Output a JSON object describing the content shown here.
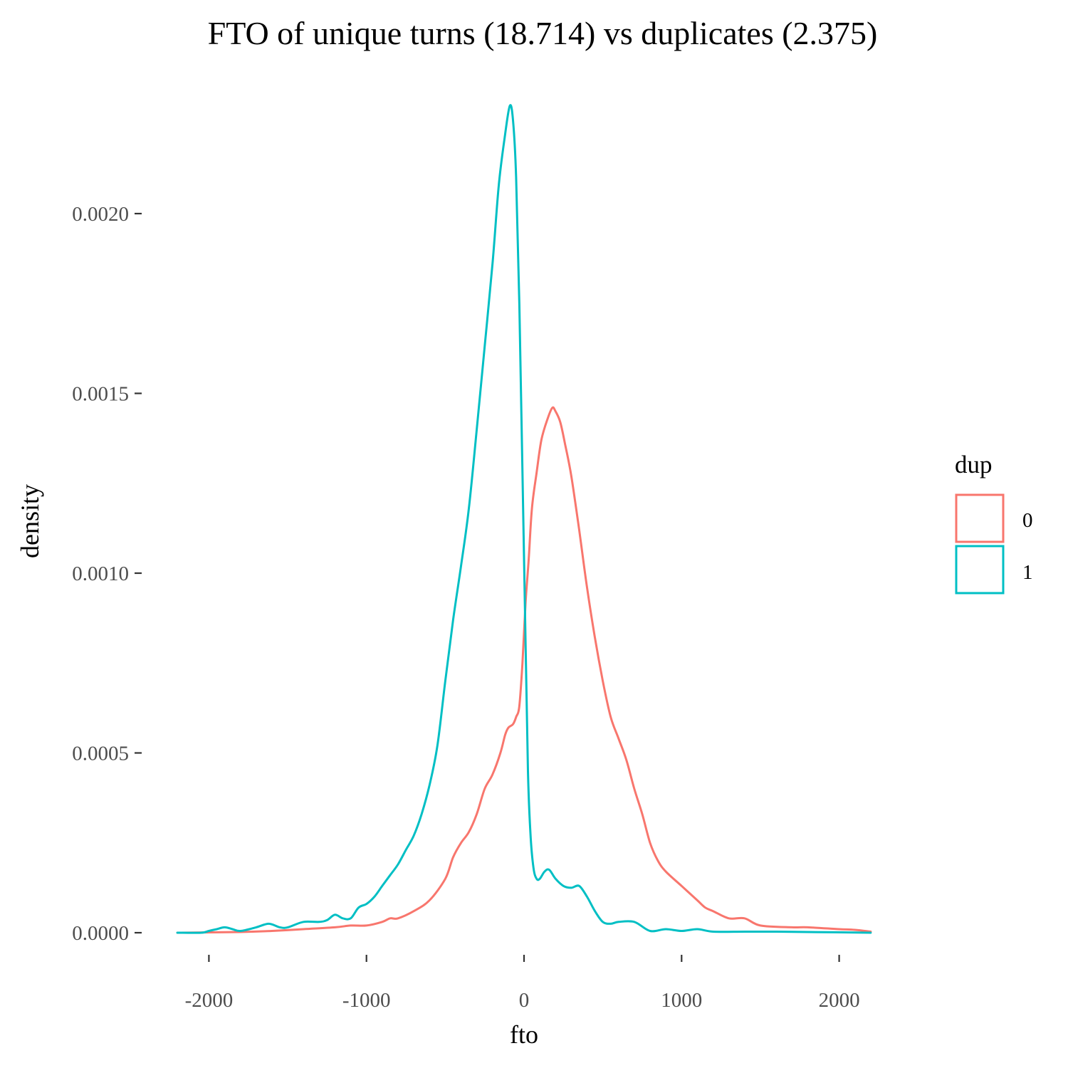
{
  "chart_data": {
    "type": "line",
    "title": "FTO of unique turns (18.714) vs duplicates (2.375)",
    "xlabel": "fto",
    "ylabel": "density",
    "xlim": [
      -2200,
      2200
    ],
    "ylim": [
      0,
      0.0023
    ],
    "x_ticks": [
      -2000,
      -1000,
      0,
      1000,
      2000
    ],
    "x_tick_labels": [
      "-2000",
      "-1000",
      "0",
      "1000",
      "2000"
    ],
    "y_ticks": [
      0,
      0.0005,
      0.001,
      0.0015,
      0.002
    ],
    "y_tick_labels": [
      "0.0000",
      "0.0005",
      "0.0010",
      "0.0015",
      "0.0020"
    ],
    "grid": false,
    "legend": {
      "title": "dup",
      "placement": "right",
      "entries": [
        {
          "label": "0",
          "color": "#F8766D"
        },
        {
          "label": "1",
          "color": "#00BFC4"
        }
      ]
    },
    "series": [
      {
        "name": "0",
        "color": "#F8766D",
        "points": [
          [
            -2200,
            0
          ],
          [
            -1800,
            2e-06
          ],
          [
            -1600,
            5e-06
          ],
          [
            -1400,
            1e-05
          ],
          [
            -1200,
            1.5e-05
          ],
          [
            -1100,
            2e-05
          ],
          [
            -1000,
            2e-05
          ],
          [
            -900,
            3e-05
          ],
          [
            -850,
            4e-05
          ],
          [
            -800,
            4e-05
          ],
          [
            -700,
            6e-05
          ],
          [
            -600,
            9e-05
          ],
          [
            -500,
            0.00015
          ],
          [
            -450,
            0.00021
          ],
          [
            -400,
            0.00025
          ],
          [
            -350,
            0.00028
          ],
          [
            -300,
            0.00033
          ],
          [
            -250,
            0.0004
          ],
          [
            -200,
            0.00044
          ],
          [
            -150,
            0.0005
          ],
          [
            -120,
            0.00055
          ],
          [
            -100,
            0.00057
          ],
          [
            -70,
            0.00058
          ],
          [
            -50,
            0.0006
          ],
          [
            -30,
            0.00063
          ],
          [
            -10,
            0.00075
          ],
          [
            10,
            0.00092
          ],
          [
            30,
            0.00104
          ],
          [
            50,
            0.00118
          ],
          [
            80,
            0.00128
          ],
          [
            110,
            0.00137
          ],
          [
            150,
            0.00143
          ],
          [
            180,
            0.00146
          ],
          [
            200,
            0.00145
          ],
          [
            230,
            0.00142
          ],
          [
            260,
            0.00136
          ],
          [
            300,
            0.00127
          ],
          [
            350,
            0.00112
          ],
          [
            400,
            0.00096
          ],
          [
            450,
            0.00082
          ],
          [
            500,
            0.0007
          ],
          [
            550,
            0.0006
          ],
          [
            600,
            0.00054
          ],
          [
            650,
            0.00048
          ],
          [
            700,
            0.0004
          ],
          [
            750,
            0.00033
          ],
          [
            800,
            0.00025
          ],
          [
            850,
            0.0002
          ],
          [
            900,
            0.00017
          ],
          [
            1000,
            0.00013
          ],
          [
            1100,
            9e-05
          ],
          [
            1150,
            7e-05
          ],
          [
            1200,
            6e-05
          ],
          [
            1300,
            4e-05
          ],
          [
            1400,
            4e-05
          ],
          [
            1500,
            2e-05
          ],
          [
            1700,
            1.5e-05
          ],
          [
            1800,
            1.5e-05
          ],
          [
            2000,
            1e-05
          ],
          [
            2100,
            8e-06
          ],
          [
            2200,
            3e-06
          ]
        ]
      },
      {
        "name": "1",
        "color": "#00BFC4",
        "points": [
          [
            -2200,
            0
          ],
          [
            -2050,
            0
          ],
          [
            -2000,
            5e-06
          ],
          [
            -1950,
            1e-05
          ],
          [
            -1900,
            1.5e-05
          ],
          [
            -1850,
            1e-05
          ],
          [
            -1800,
            5e-06
          ],
          [
            -1700,
            1.5e-05
          ],
          [
            -1620,
            2.5e-05
          ],
          [
            -1550,
            1.5e-05
          ],
          [
            -1500,
            1.5e-05
          ],
          [
            -1400,
            3e-05
          ],
          [
            -1300,
            3e-05
          ],
          [
            -1250,
            3.5e-05
          ],
          [
            -1200,
            5e-05
          ],
          [
            -1150,
            4e-05
          ],
          [
            -1100,
            4e-05
          ],
          [
            -1050,
            7e-05
          ],
          [
            -1000,
            8e-05
          ],
          [
            -950,
            0.0001
          ],
          [
            -900,
            0.00013
          ],
          [
            -850,
            0.00016
          ],
          [
            -800,
            0.00019
          ],
          [
            -750,
            0.00023
          ],
          [
            -700,
            0.00027
          ],
          [
            -650,
            0.00033
          ],
          [
            -600,
            0.00041
          ],
          [
            -550,
            0.00052
          ],
          [
            -500,
            0.0007
          ],
          [
            -450,
            0.00087
          ],
          [
            -400,
            0.00102
          ],
          [
            -350,
            0.00118
          ],
          [
            -300,
            0.0014
          ],
          [
            -250,
            0.00163
          ],
          [
            -200,
            0.00186
          ],
          [
            -160,
            0.00208
          ],
          [
            -120,
            0.00222
          ],
          [
            -90,
            0.0023
          ],
          [
            -70,
            0.00226
          ],
          [
            -50,
            0.0021
          ],
          [
            -30,
            0.00175
          ],
          [
            -10,
            0.00128
          ],
          [
            10,
            0.0008
          ],
          [
            25,
            0.00045
          ],
          [
            40,
            0.00028
          ],
          [
            60,
            0.00018
          ],
          [
            80,
            0.00015
          ],
          [
            100,
            0.00015
          ],
          [
            130,
            0.00017
          ],
          [
            160,
            0.000175
          ],
          [
            200,
            0.00015
          ],
          [
            250,
            0.00013
          ],
          [
            300,
            0.000125
          ],
          [
            350,
            0.00013
          ],
          [
            400,
            0.0001
          ],
          [
            450,
            6e-05
          ],
          [
            500,
            3e-05
          ],
          [
            550,
            2.5e-05
          ],
          [
            600,
            3e-05
          ],
          [
            700,
            3e-05
          ],
          [
            800,
            5e-06
          ],
          [
            900,
            1e-05
          ],
          [
            1000,
            5e-06
          ],
          [
            1100,
            1e-05
          ],
          [
            1200,
            3e-06
          ],
          [
            1400,
            3e-06
          ],
          [
            1600,
            3e-06
          ],
          [
            1800,
            2e-06
          ],
          [
            2200,
            0
          ]
        ]
      }
    ]
  }
}
